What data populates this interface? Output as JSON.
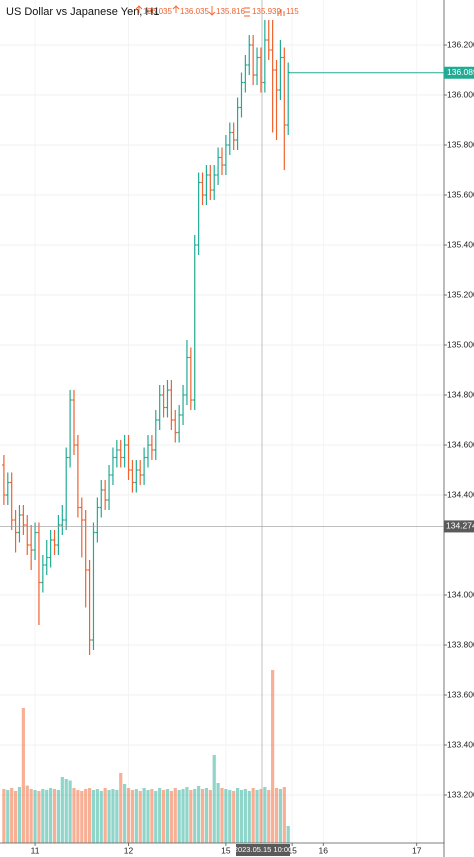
{
  "chart_data": {
    "type": "ohlc",
    "title": "US Dollar vs Japanese Yen, H1",
    "readout": {
      "open": 136.035,
      "high": 136.035,
      "low": 135.816,
      "close": 135.939,
      "volume": 115
    },
    "up_color": "#22ab94",
    "down_color": "#f0622e",
    "open": [
      134.52,
      134.4,
      134.45,
      134.3,
      134.25,
      134.32,
      134.28,
      134.2,
      134.18,
      134.25,
      134.05,
      134.12,
      134.15,
      134.22,
      134.2,
      134.28,
      134.3,
      134.55,
      134.78,
      134.6,
      134.35,
      134.3,
      134.1,
      133.82,
      134.25,
      134.35,
      134.42,
      134.38,
      134.48,
      134.55,
      134.58,
      134.55,
      134.6,
      134.5,
      134.45,
      134.5,
      134.48,
      134.55,
      134.6,
      134.58,
      134.7,
      134.8,
      134.75,
      134.82,
      134.7,
      134.65,
      134.72,
      134.8,
      134.95,
      134.78,
      135.4,
      135.65,
      135.6,
      135.68,
      135.62,
      135.68,
      135.75,
      135.72,
      135.8,
      135.85,
      135.82,
      135.95,
      136.05,
      136.12,
      136.2,
      136.08,
      136.15,
      136.05,
      136.22,
      136.18,
      136.1,
      136.02,
      136.15,
      135.88
    ],
    "high": [
      134.56,
      134.49,
      134.49,
      134.34,
      134.36,
      134.36,
      134.32,
      134.28,
      134.29,
      134.29,
      134.16,
      134.22,
      134.26,
      134.26,
      134.32,
      134.36,
      134.59,
      134.82,
      134.82,
      134.64,
      134.39,
      134.34,
      134.14,
      134.29,
      134.39,
      134.46,
      134.46,
      134.52,
      134.59,
      134.62,
      134.62,
      134.64,
      134.64,
      134.54,
      134.54,
      134.54,
      134.59,
      134.64,
      134.64,
      134.74,
      134.84,
      134.84,
      134.86,
      134.86,
      134.74,
      134.76,
      134.84,
      135.02,
      134.99,
      135.44,
      135.69,
      135.69,
      135.72,
      135.72,
      135.72,
      135.79,
      135.79,
      135.84,
      135.89,
      135.89,
      135.99,
      136.09,
      136.16,
      136.24,
      136.24,
      136.19,
      136.19,
      136.3,
      136.3,
      136.3,
      136.14,
      136.22,
      136.19,
      136.13
    ],
    "low": [
      134.36,
      134.36,
      134.26,
      134.17,
      134.21,
      134.24,
      134.16,
      134.1,
      134.14,
      133.88,
      134.01,
      134.08,
      134.11,
      134.16,
      134.16,
      134.24,
      134.26,
      134.51,
      134.56,
      134.31,
      134.15,
      133.95,
      133.76,
      133.78,
      134.21,
      134.31,
      134.34,
      134.34,
      134.44,
      134.51,
      134.51,
      134.51,
      134.46,
      134.41,
      134.41,
      134.44,
      134.44,
      134.51,
      134.54,
      134.54,
      134.66,
      134.71,
      134.71,
      134.66,
      134.61,
      134.61,
      134.68,
      134.76,
      134.74,
      134.74,
      135.36,
      135.56,
      135.56,
      135.58,
      135.58,
      135.64,
      135.68,
      135.68,
      135.76,
      135.78,
      135.78,
      135.91,
      136.01,
      136.08,
      136.04,
      136.04,
      136.01,
      136.01,
      136.14,
      135.85,
      135.82,
      135.98,
      135.7,
      135.84
    ],
    "close": [
      134.4,
      134.45,
      134.3,
      134.25,
      134.32,
      134.28,
      134.2,
      134.18,
      134.25,
      134.05,
      134.12,
      134.15,
      134.22,
      134.2,
      134.28,
      134.3,
      134.55,
      134.78,
      134.6,
      134.35,
      134.3,
      134.1,
      133.82,
      134.25,
      134.35,
      134.42,
      134.38,
      134.48,
      134.55,
      134.58,
      134.55,
      134.6,
      134.5,
      134.45,
      134.5,
      134.48,
      134.55,
      134.6,
      134.58,
      134.7,
      134.8,
      134.75,
      134.82,
      134.7,
      134.65,
      134.72,
      134.8,
      134.95,
      134.78,
      135.4,
      135.65,
      135.6,
      135.68,
      135.62,
      135.68,
      135.75,
      135.72,
      135.8,
      135.85,
      135.82,
      135.95,
      136.05,
      136.12,
      136.2,
      136.08,
      136.15,
      136.05,
      136.22,
      136.18,
      136.1,
      136.02,
      136.15,
      135.88,
      136.09
    ],
    "volume": [
      1080,
      1060,
      1100,
      1040,
      1120,
      2700,
      1150,
      1080,
      1060,
      1040,
      1080,
      1060,
      1100,
      1080,
      1060,
      1320,
      1280,
      1250,
      1100,
      1060,
      1040,
      1080,
      1100,
      1060,
      1080,
      1040,
      1100,
      1060,
      1080,
      1060,
      1400,
      1180,
      1100,
      1060,
      1080,
      1040,
      1100,
      1060,
      1080,
      1040,
      1100,
      1060,
      1080,
      1040,
      1100,
      1060,
      1080,
      1120,
      1060,
      1080,
      1140,
      1080,
      1100,
      1060,
      1760,
      1200,
      1100,
      1080,
      1060,
      1040,
      1100,
      1060,
      1080,
      1040,
      1100,
      1060,
      1080,
      1120,
      1060,
      3460,
      1100,
      1080,
      1120,
      340
    ],
    "ylim": [
      133.008,
      136.38
    ],
    "yticks": [
      {
        "value": 136.2,
        "label": "136.2000"
      },
      {
        "value": 136.0,
        "label": "136.0000"
      },
      {
        "value": 135.8,
        "label": "135.8000"
      },
      {
        "value": 135.6,
        "label": "135.6000"
      },
      {
        "value": 135.4,
        "label": "135.4000"
      },
      {
        "value": 135.2,
        "label": "135.2000"
      },
      {
        "value": 135.0,
        "label": "135.0000"
      },
      {
        "value": 134.8,
        "label": "134.8000"
      },
      {
        "value": 134.6,
        "label": "134.6000"
      },
      {
        "value": 134.4,
        "label": "134.4000"
      },
      {
        "value": 134.0,
        "label": "134.0000"
      },
      {
        "value": 133.8,
        "label": "133.8000"
      },
      {
        "value": 133.6,
        "label": "133.6000"
      },
      {
        "value": 133.4,
        "label": "133.4000"
      },
      {
        "value": 133.2,
        "label": "133.2000"
      }
    ],
    "xlim": [
      -1,
      113
    ],
    "xticks": [
      {
        "value": 8,
        "label": "11"
      },
      {
        "value": 32,
        "label": "12"
      },
      {
        "value": 57,
        "label": "15"
      },
      {
        "value": 74,
        "label": "15"
      },
      {
        "value": 82,
        "label": "16"
      },
      {
        "value": 106,
        "label": "17"
      }
    ],
    "current_price": 136.089,
    "crosshair": {
      "price": 134.2743,
      "time": "2023.05.15 10:00"
    }
  }
}
